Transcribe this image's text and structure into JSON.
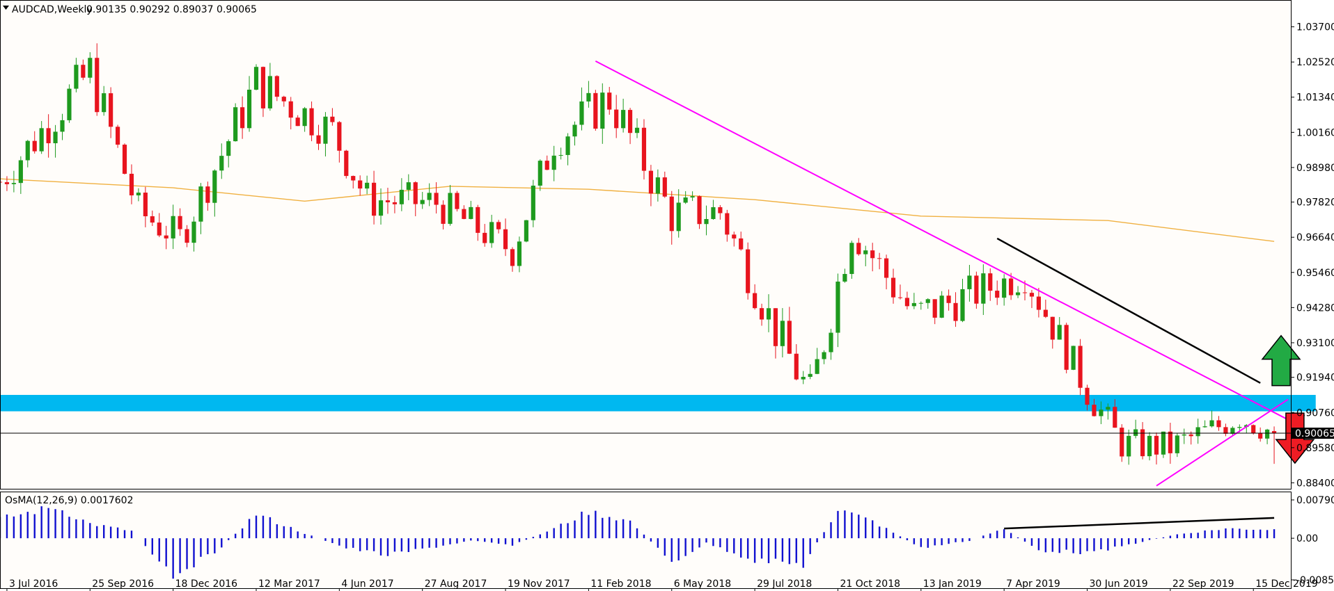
{
  "header": {
    "symbol_text": "AUDCAD,Weekly",
    "ohlc_text": "0.90135 0.90292 0.89037 0.90065",
    "menu_icon": "triangle-down-icon"
  },
  "oscillator": {
    "title": "OsMA(12,26,9) 0.0017602",
    "scale_labels": [
      "0.007909",
      "0.00",
      "-0.0085931"
    ]
  },
  "price_axis": {
    "labels": [
      "1.03700",
      "1.02520",
      "1.01340",
      "1.00160",
      "0.98980",
      "0.97820",
      "0.96640",
      "0.95460",
      "0.94280",
      "0.93100",
      "0.91940",
      "0.90760",
      "0.89580",
      "0.88400"
    ],
    "current_price": "0.90065"
  },
  "time_axis": {
    "labels": [
      "3 Jul 2016",
      "25 Sep 2016",
      "18 Dec 2016",
      "12 Mar 2017",
      "4 Jun 2017",
      "27 Aug 2017",
      "19 Nov 2017",
      "11 Feb 2018",
      "6 May 2018",
      "29 Jul 2018",
      "21 Oct 2018",
      "13 Jan 2019",
      "7 Apr 2019",
      "30 Jun 2019",
      "22 Sep 2019",
      "15 Dec 2019"
    ]
  },
  "colors": {
    "bull": "#1e9a1e",
    "bear": "#e8141e",
    "ma": "#f0b040",
    "trendline": "#ff00ff",
    "zone": "#00b8f0",
    "osma": "#1010d0",
    "up_arrow": "#22aa44",
    "down_arrow": "#ee1c24",
    "background": "#fffdfa"
  },
  "chart_data": {
    "type": "candlestick",
    "symbol": "AUDCAD",
    "timeframe": "Weekly",
    "last_ohlc": {
      "open": 0.90135,
      "high": 0.90292,
      "low": 0.89037,
      "close": 0.90065
    },
    "ylim": [
      0.882,
      1.046
    ],
    "x_range": [
      "2016-06-26",
      "2020-01-12"
    ],
    "moving_average_points": [
      {
        "date": "2016-06-26",
        "value": 0.986
      },
      {
        "date": "2016-12-18",
        "value": 0.983
      },
      {
        "date": "2017-04-30",
        "value": 0.9785
      },
      {
        "date": "2017-09-24",
        "value": 0.9835
      },
      {
        "date": "2018-02-11",
        "value": 0.9825
      },
      {
        "date": "2018-07-29",
        "value": 0.979
      },
      {
        "date": "2019-01-13",
        "value": 0.9735
      },
      {
        "date": "2019-07-21",
        "value": 0.972
      },
      {
        "date": "2020-01-05",
        "value": 0.965
      }
    ],
    "candle_path": [
      {
        "date": "2016-06-26",
        "close": 0.985,
        "vol": 0.01
      },
      {
        "date": "2016-09-25",
        "close": 1.022,
        "vol": 0.012
      },
      {
        "date": "2016-11-13",
        "close": 0.975,
        "vol": 0.01
      },
      {
        "date": "2016-12-25",
        "close": 0.966,
        "vol": 0.009
      },
      {
        "date": "2017-03-12",
        "close": 1.018,
        "vol": 0.012
      },
      {
        "date": "2017-05-28",
        "close": 1.002,
        "vol": 0.01
      },
      {
        "date": "2017-07-02",
        "close": 0.979,
        "vol": 0.01
      },
      {
        "date": "2017-09-10",
        "close": 0.978,
        "vol": 0.009
      },
      {
        "date": "2017-11-26",
        "close": 0.962,
        "vol": 0.009
      },
      {
        "date": "2018-01-07",
        "close": 0.999,
        "vol": 0.01
      },
      {
        "date": "2018-03-04",
        "close": 1.013,
        "vol": 0.012
      },
      {
        "date": "2018-05-06",
        "close": 0.974,
        "vol": 0.011
      },
      {
        "date": "2018-06-24",
        "close": 0.975,
        "vol": 0.01
      },
      {
        "date": "2018-08-19",
        "close": 0.935,
        "vol": 0.011
      },
      {
        "date": "2018-09-23",
        "close": 0.913,
        "vol": 0.012
      },
      {
        "date": "2018-11-04",
        "close": 0.97,
        "vol": 0.011
      },
      {
        "date": "2019-01-06",
        "close": 0.94,
        "vol": 0.011
      },
      {
        "date": "2019-04-28",
        "close": 0.954,
        "vol": 0.009
      },
      {
        "date": "2019-06-30",
        "close": 0.915,
        "vol": 0.009
      },
      {
        "date": "2019-08-04",
        "close": 0.897,
        "vol": 0.008
      },
      {
        "date": "2019-09-22",
        "close": 0.896,
        "vol": 0.008
      },
      {
        "date": "2019-12-01",
        "close": 0.906,
        "vol": 0.007
      },
      {
        "date": "2020-01-05",
        "close": 0.9007,
        "vol": 0.007
      }
    ],
    "support_zone": {
      "from": 0.908,
      "to": 0.9135,
      "x_from": "2016-06-26",
      "x_to": "2020-02-16"
    },
    "trendlines": [
      {
        "name": "descending resistance",
        "color": "magenta",
        "from": {
          "date": "2018-02-18",
          "price": 1.0255
        },
        "to": {
          "date": "2020-01-26",
          "price": 0.904
        }
      },
      {
        "name": "ascending support",
        "color": "magenta",
        "from": {
          "date": "2019-09-08",
          "price": 0.883
        },
        "to": {
          "date": "2020-01-19",
          "price": 0.912
        }
      },
      {
        "name": "black line",
        "color": "black",
        "from": {
          "date": "2019-03-31",
          "price": 0.966
        },
        "to": {
          "date": "2019-12-22",
          "price": 0.9175
        }
      }
    ],
    "arrows": [
      {
        "direction": "up",
        "date": "2020-01-12",
        "price": 0.925
      },
      {
        "direction": "down",
        "date": "2020-01-26",
        "price": 0.899
      }
    ],
    "osma": {
      "ylim": [
        -0.0085931,
        0.007909
      ],
      "points": [
        {
          "date": "2016-06-26",
          "value": 0.004
        },
        {
          "date": "2016-08-21",
          "value": 0.0065
        },
        {
          "date": "2016-09-25",
          "value": 0.003
        },
        {
          "date": "2016-11-06",
          "value": 0.0015
        },
        {
          "date": "2016-12-18",
          "value": -0.0075
        },
        {
          "date": "2017-01-29",
          "value": -0.003
        },
        {
          "date": "2017-03-12",
          "value": 0.005
        },
        {
          "date": "2017-04-30",
          "value": 0.001
        },
        {
          "date": "2017-06-11",
          "value": -0.002
        },
        {
          "date": "2017-07-23",
          "value": -0.0035
        },
        {
          "date": "2017-09-03",
          "value": -0.002
        },
        {
          "date": "2017-10-15",
          "value": -0.0005
        },
        {
          "date": "2017-11-26",
          "value": -0.0015
        },
        {
          "date": "2018-01-07",
          "value": 0.002
        },
        {
          "date": "2018-02-11",
          "value": 0.0055
        },
        {
          "date": "2018-03-25",
          "value": 0.0035
        },
        {
          "date": "2018-05-06",
          "value": -0.005
        },
        {
          "date": "2018-06-10",
          "value": -0.001
        },
        {
          "date": "2018-07-29",
          "value": -0.0045
        },
        {
          "date": "2018-09-16",
          "value": -0.0055
        },
        {
          "date": "2018-10-21",
          "value": 0.006
        },
        {
          "date": "2018-11-25",
          "value": 0.0035
        },
        {
          "date": "2019-01-13",
          "value": -0.002
        },
        {
          "date": "2019-03-03",
          "value": -0.0005
        },
        {
          "date": "2019-04-07",
          "value": 0.002
        },
        {
          "date": "2019-05-12",
          "value": -0.0025
        },
        {
          "date": "2019-07-07",
          "value": -0.003
        },
        {
          "date": "2019-08-18",
          "value": -0.001
        },
        {
          "date": "2019-09-29",
          "value": 0.0008
        },
        {
          "date": "2019-11-17",
          "value": 0.002
        },
        {
          "date": "2020-01-05",
          "value": 0.0018
        }
      ],
      "divergence_line": {
        "from": {
          "date": "2019-04-07",
          "value": 0.002
        },
        "to": {
          "date": "2020-01-05",
          "value": 0.0042
        }
      }
    }
  }
}
